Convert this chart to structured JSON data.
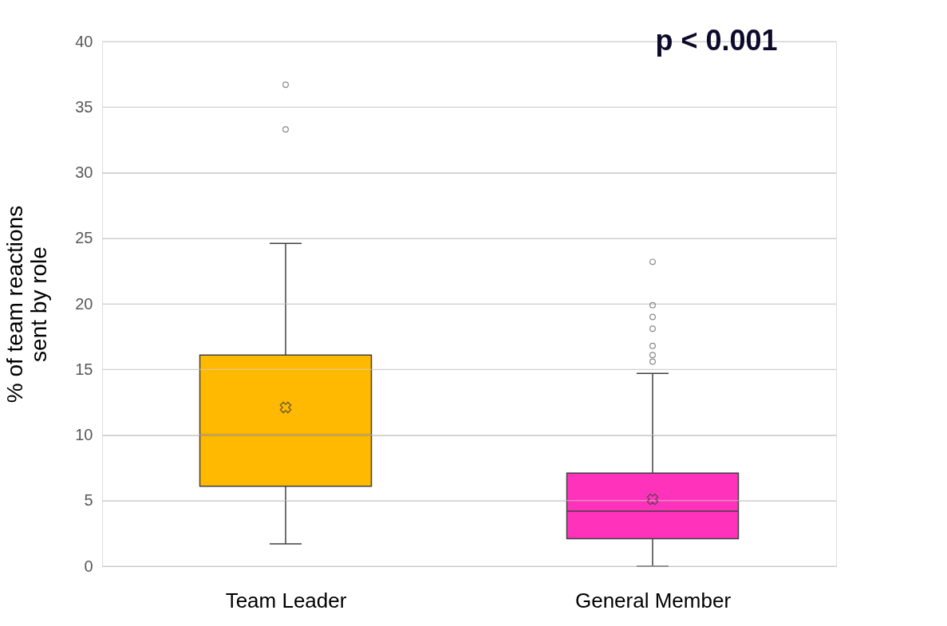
{
  "chart_data": {
    "type": "box",
    "ylabel": "% of team reactions sent by role",
    "categories": [
      "Team Leader",
      "General Member"
    ],
    "colors": [
      "#ffb900",
      "#ff33bb"
    ],
    "boxes": [
      {
        "low": 1.7,
        "q1": 6.1,
        "median": 10.0,
        "q3": 16.1,
        "high": 24.6,
        "mean": 12.1,
        "outliers": [
          36.7,
          33.3
        ]
      },
      {
        "low": 0,
        "q1": 2.1,
        "median": 4.2,
        "q3": 7.1,
        "high": 14.7,
        "mean": 5.1,
        "outliers": [
          23.2,
          19.9,
          19.0,
          18.1,
          16.8,
          16.1,
          15.6
        ]
      }
    ],
    "ylim": [
      0,
      40
    ],
    "yticks": [
      0,
      5,
      10,
      15,
      20,
      25,
      30,
      35,
      40
    ],
    "grid": "y",
    "legend": false,
    "annotations": [
      "p < 0.001"
    ]
  }
}
